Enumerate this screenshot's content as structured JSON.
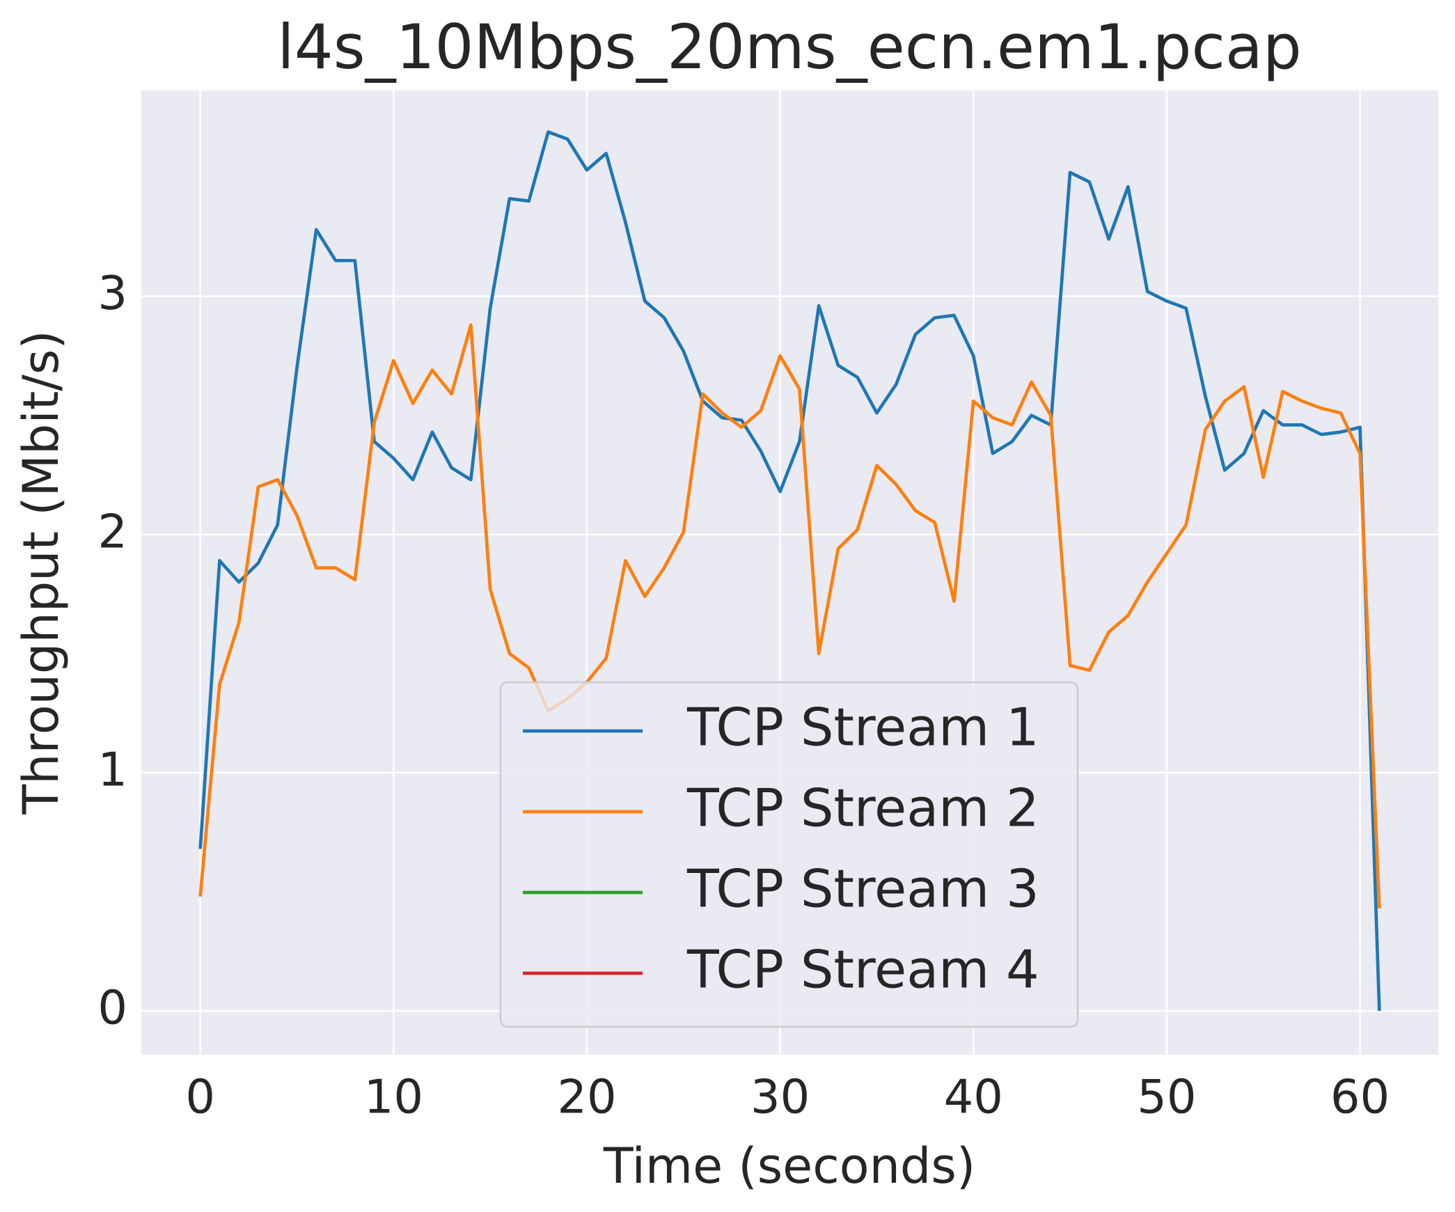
{
  "chart_data": {
    "type": "line",
    "title": "l4s_10Mbps_20ms_ecn.em1.pcap",
    "xlabel": "Time (seconds)",
    "ylabel": "Throughput (Mbit/s)",
    "x": [
      0,
      1,
      2,
      3,
      4,
      5,
      6,
      7,
      8,
      9,
      10,
      11,
      12,
      13,
      14,
      15,
      16,
      17,
      18,
      19,
      20,
      21,
      22,
      23,
      24,
      25,
      26,
      27,
      28,
      29,
      30,
      31,
      32,
      33,
      34,
      35,
      36,
      37,
      38,
      39,
      40,
      41,
      42,
      43,
      44,
      45,
      46,
      47,
      48,
      49,
      50,
      51,
      52,
      53,
      54,
      55,
      56,
      57,
      58,
      59,
      60,
      61
    ],
    "series": [
      {
        "name": "TCP Stream 1",
        "color": "#1f77b4",
        "values": [
          0.68,
          1.89,
          1.8,
          1.88,
          2.04,
          2.7,
          3.28,
          3.15,
          3.15,
          2.39,
          2.32,
          2.23,
          2.43,
          2.28,
          2.23,
          2.95,
          3.41,
          3.4,
          3.69,
          3.66,
          3.53,
          3.6,
          3.31,
          2.98,
          2.91,
          2.77,
          2.56,
          2.49,
          2.48,
          2.35,
          2.18,
          2.39,
          2.96,
          2.71,
          2.66,
          2.51,
          2.63,
          2.84,
          2.91,
          2.92,
          2.75,
          2.34,
          2.39,
          2.5,
          2.46,
          3.52,
          3.48,
          3.24,
          3.46,
          3.02,
          2.98,
          2.95,
          2.58,
          2.27,
          2.34,
          2.52,
          2.46,
          2.46,
          2.42,
          2.43,
          2.45,
          0.0
        ]
      },
      {
        "name": "TCP Stream 2",
        "color": "#ff7f0e",
        "values": [
          0.48,
          1.37,
          1.63,
          2.2,
          2.23,
          2.08,
          1.86,
          1.86,
          1.81,
          2.47,
          2.73,
          2.55,
          2.69,
          2.59,
          2.88,
          1.77,
          1.5,
          1.44,
          1.26,
          1.31,
          1.38,
          1.48,
          1.89,
          1.74,
          1.86,
          2.01,
          2.59,
          2.51,
          2.45,
          2.52,
          2.75,
          2.61,
          1.5,
          1.94,
          2.02,
          2.29,
          2.21,
          2.1,
          2.05,
          1.72,
          2.56,
          2.49,
          2.46,
          2.64,
          2.5,
          1.45,
          1.43,
          1.59,
          1.66,
          1.8,
          1.92,
          2.04,
          2.44,
          2.56,
          2.62,
          2.24,
          2.6,
          2.56,
          2.53,
          2.51,
          2.34,
          0.43
        ]
      },
      {
        "name": "TCP Stream 3",
        "color": "#2ca02c",
        "values": [
          null,
          null,
          null,
          null,
          null,
          null,
          null,
          null,
          null,
          null,
          null,
          null,
          null,
          null,
          null,
          null,
          null,
          null,
          null,
          null,
          null,
          null,
          null,
          null,
          null,
          null,
          null,
          null,
          null,
          null,
          null,
          null,
          null,
          null,
          null,
          null,
          null,
          null,
          null,
          null,
          null,
          null,
          null,
          null,
          null,
          null,
          null,
          null,
          null,
          null,
          null,
          null,
          null,
          null,
          null,
          null,
          null,
          null,
          null,
          null,
          null,
          null
        ]
      },
      {
        "name": "TCP Stream 4",
        "color": "#d62728",
        "values": [
          null,
          null,
          null,
          null,
          null,
          null,
          null,
          null,
          null,
          null,
          null,
          null,
          null,
          null,
          null,
          null,
          null,
          null,
          null,
          null,
          null,
          null,
          null,
          null,
          null,
          null,
          null,
          null,
          null,
          null,
          null,
          null,
          null,
          null,
          null,
          null,
          null,
          null,
          null,
          null,
          null,
          null,
          null,
          null,
          null,
          null,
          null,
          null,
          null,
          null,
          null,
          null,
          null,
          null,
          null,
          null,
          null,
          null,
          null,
          null,
          null,
          null
        ]
      }
    ],
    "xlim": [
      -3.05,
      64.05
    ],
    "xticks": [
      0,
      10,
      20,
      30,
      40,
      50,
      60
    ],
    "ylim": [
      -0.184,
      3.864
    ],
    "yticks": [
      0,
      1,
      2,
      3
    ],
    "grid": true,
    "legend": "lower center"
  }
}
